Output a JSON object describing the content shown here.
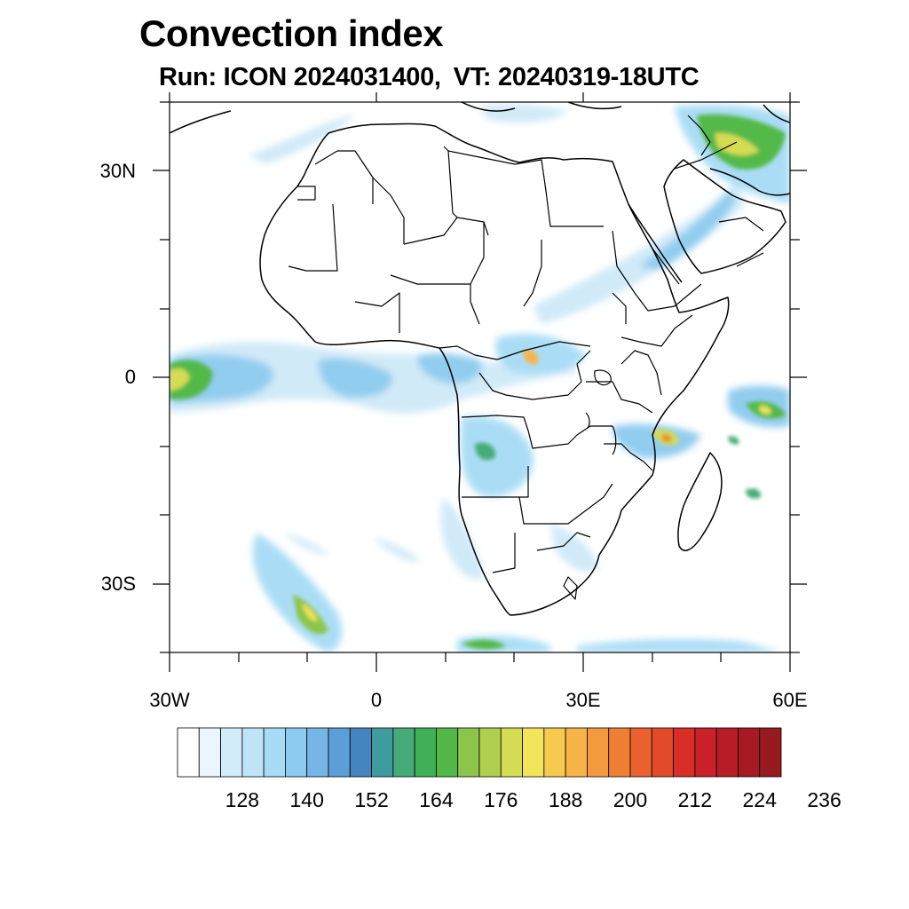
{
  "title": "Convection index",
  "subtitle": {
    "run": "Run: ICON 2024031400,",
    "vt": "VT: 20240319-18UTC"
  },
  "map": {
    "region": "Africa",
    "extent": {
      "lon_min": -30,
      "lon_max": 60,
      "lat_min": -40,
      "lat_max": 40
    },
    "lat_labels": [
      {
        "lat": 30,
        "label": "30N"
      },
      {
        "lat": 0,
        "label": "0"
      },
      {
        "lat": -30,
        "label": "30S"
      }
    ],
    "lon_labels": [
      {
        "lon": -30,
        "label": "30W"
      },
      {
        "lon": 0,
        "label": "0"
      },
      {
        "lon": 30,
        "label": "30E"
      },
      {
        "lon": 60,
        "label": "60E"
      }
    ],
    "coast_color": "#000000"
  },
  "colorbar": {
    "labels": [
      "128",
      "140",
      "152",
      "164",
      "176",
      "188",
      "200",
      "212",
      "224",
      "236"
    ],
    "colors": [
      "#ffffff",
      "#eaf6fd",
      "#d2ecf9",
      "#bfe4f7",
      "#a6dcf5",
      "#8ccbef",
      "#76b6e6",
      "#5b9fd6",
      "#4585bf",
      "#3f9c9e",
      "#45ab78",
      "#3fb055",
      "#52b948",
      "#8cc44c",
      "#afd04e",
      "#d4dc53",
      "#f2e55a",
      "#f8c94f",
      "#f7b248",
      "#f49a3e",
      "#ef7f35",
      "#e9612d",
      "#e24a2a",
      "#d92e28",
      "#c9202a",
      "#b81c27",
      "#a61a24",
      "#961a1e"
    ]
  }
}
